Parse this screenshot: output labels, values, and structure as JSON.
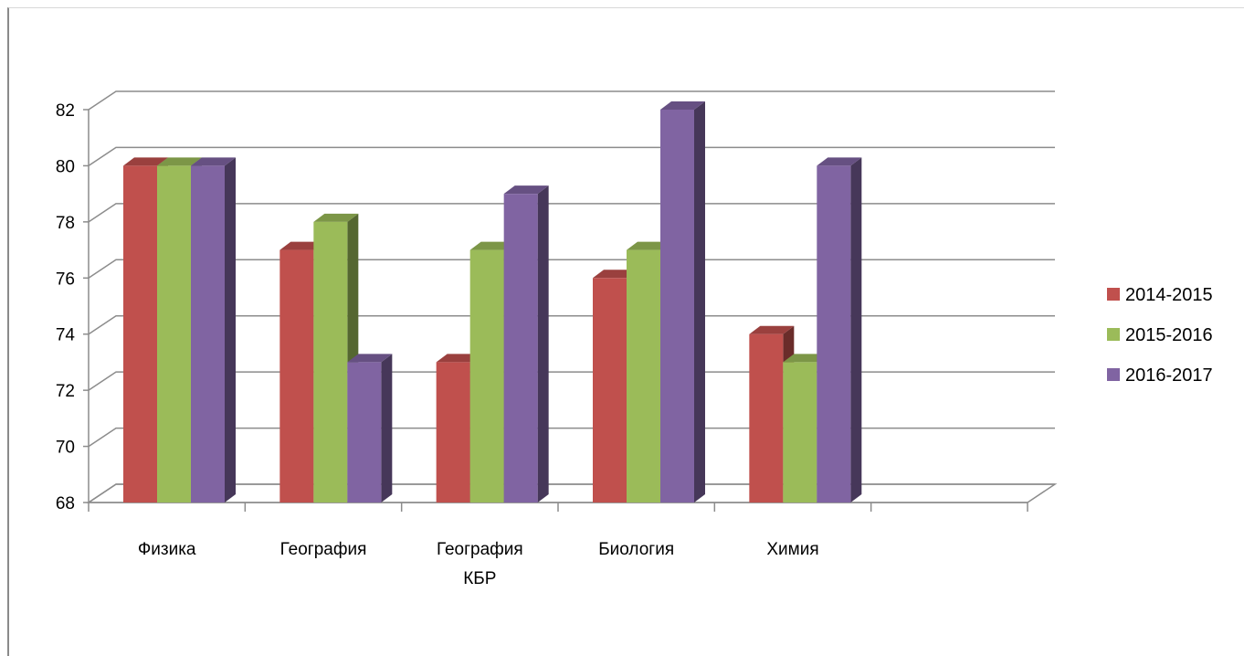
{
  "chart_data": {
    "type": "bar",
    "title": "",
    "xlabel": "",
    "ylabel": "",
    "ylim": [
      68,
      82
    ],
    "yticks": [
      68,
      70,
      72,
      74,
      76,
      78,
      80,
      82
    ],
    "categories": [
      [
        "Физика"
      ],
      [
        "География"
      ],
      [
        "География",
        "КБР"
      ],
      [
        "Биология"
      ],
      [
        "Химия"
      ],
      [
        ""
      ]
    ],
    "series": [
      {
        "name": "2014-2015",
        "color": "#c0504d",
        "values": [
          80,
          77,
          73,
          76,
          74,
          null
        ]
      },
      {
        "name": "2015-2016",
        "color": "#9bbb59",
        "values": [
          80,
          78,
          77,
          77,
          73,
          null
        ]
      },
      {
        "name": "2016-2017",
        "color": "#8064a2",
        "values": [
          80,
          73,
          79,
          82,
          80,
          null
        ]
      }
    ],
    "grid": true,
    "legend_position": "right",
    "style": "3d-clustered-column"
  }
}
